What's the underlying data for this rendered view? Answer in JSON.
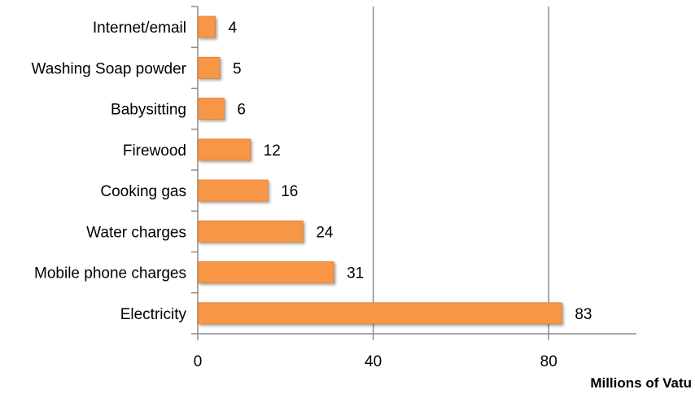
{
  "chart_data": {
    "type": "bar",
    "orientation": "horizontal",
    "categories": [
      "Internet/email",
      "Washing Soap powder",
      "Babysitting",
      "Firewood",
      "Cooking gas",
      "Water charges",
      "Mobile phone charges",
      "Electricity"
    ],
    "values": [
      4,
      5,
      6,
      12,
      16,
      24,
      31,
      83
    ],
    "value_labels": [
      "4",
      "5",
      "6",
      "12",
      "16",
      "24",
      "31",
      "83"
    ],
    "xticks": [
      0,
      40,
      80
    ],
    "xtick_labels": [
      "0",
      "40",
      "80"
    ],
    "xlim": [
      0,
      100
    ],
    "xlabel": "Millions of Vatu",
    "ylabel": "",
    "title": "",
    "grid": "vertical",
    "legend": "none",
    "colors": {
      "bar": "#F79646",
      "bar_edge": "#E07B2E",
      "grid": "#8C8C8C",
      "axis": "#8C8C8C",
      "text": "#000000"
    }
  }
}
